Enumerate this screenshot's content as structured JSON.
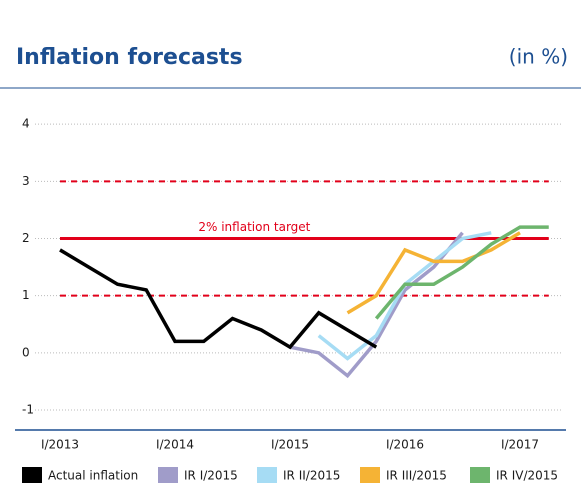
{
  "chart_data": {
    "type": "line",
    "title": "Inflation forecasts",
    "subtitle": "(in %)",
    "categories": [
      "I/2013",
      null,
      null,
      null,
      "I/2014",
      null,
      null,
      null,
      "I/2015",
      null,
      null,
      null,
      "I/2016",
      null,
      null,
      null,
      "I/2017",
      null
    ],
    "series": [
      {
        "name": "Actual inflation",
        "color": "#000000",
        "values": [
          1.8,
          1.5,
          1.2,
          1.1,
          0.2,
          0.2,
          0.6,
          0.4,
          0.1,
          0.7,
          0.4,
          0.1,
          null,
          null,
          null,
          null,
          null,
          null
        ]
      },
      {
        "name": "IR I/2015",
        "color": "#a09cc9",
        "values": [
          null,
          null,
          null,
          null,
          null,
          null,
          null,
          null,
          0.1,
          0.0,
          -0.4,
          0.2,
          1.1,
          1.5,
          2.1,
          null,
          null,
          null
        ]
      },
      {
        "name": "IR II/2015",
        "color": "#a6dcf4",
        "values": [
          null,
          null,
          null,
          null,
          null,
          null,
          null,
          null,
          null,
          0.3,
          -0.1,
          0.3,
          1.2,
          1.6,
          2.0,
          2.1,
          null,
          null
        ]
      },
      {
        "name": "IR III/2015",
        "color": "#f5b335",
        "values": [
          null,
          null,
          null,
          null,
          null,
          null,
          null,
          null,
          null,
          null,
          0.7,
          1.0,
          1.8,
          1.6,
          1.6,
          1.8,
          2.1,
          null
        ]
      },
      {
        "name": "IR IV/2015",
        "color": "#6db56d",
        "values": [
          null,
          null,
          null,
          null,
          null,
          null,
          null,
          null,
          null,
          null,
          null,
          0.6,
          1.2,
          1.2,
          1.5,
          1.9,
          2.2,
          2.2
        ]
      }
    ],
    "target": {
      "label": "2% inflation target",
      "value": 2,
      "band": [
        1,
        3
      ],
      "color": "#e2001a"
    },
    "ylim": [
      -1.35,
      4.5
    ],
    "yticks": [
      -1,
      0,
      1,
      2,
      3,
      4
    ],
    "grid": true
  }
}
